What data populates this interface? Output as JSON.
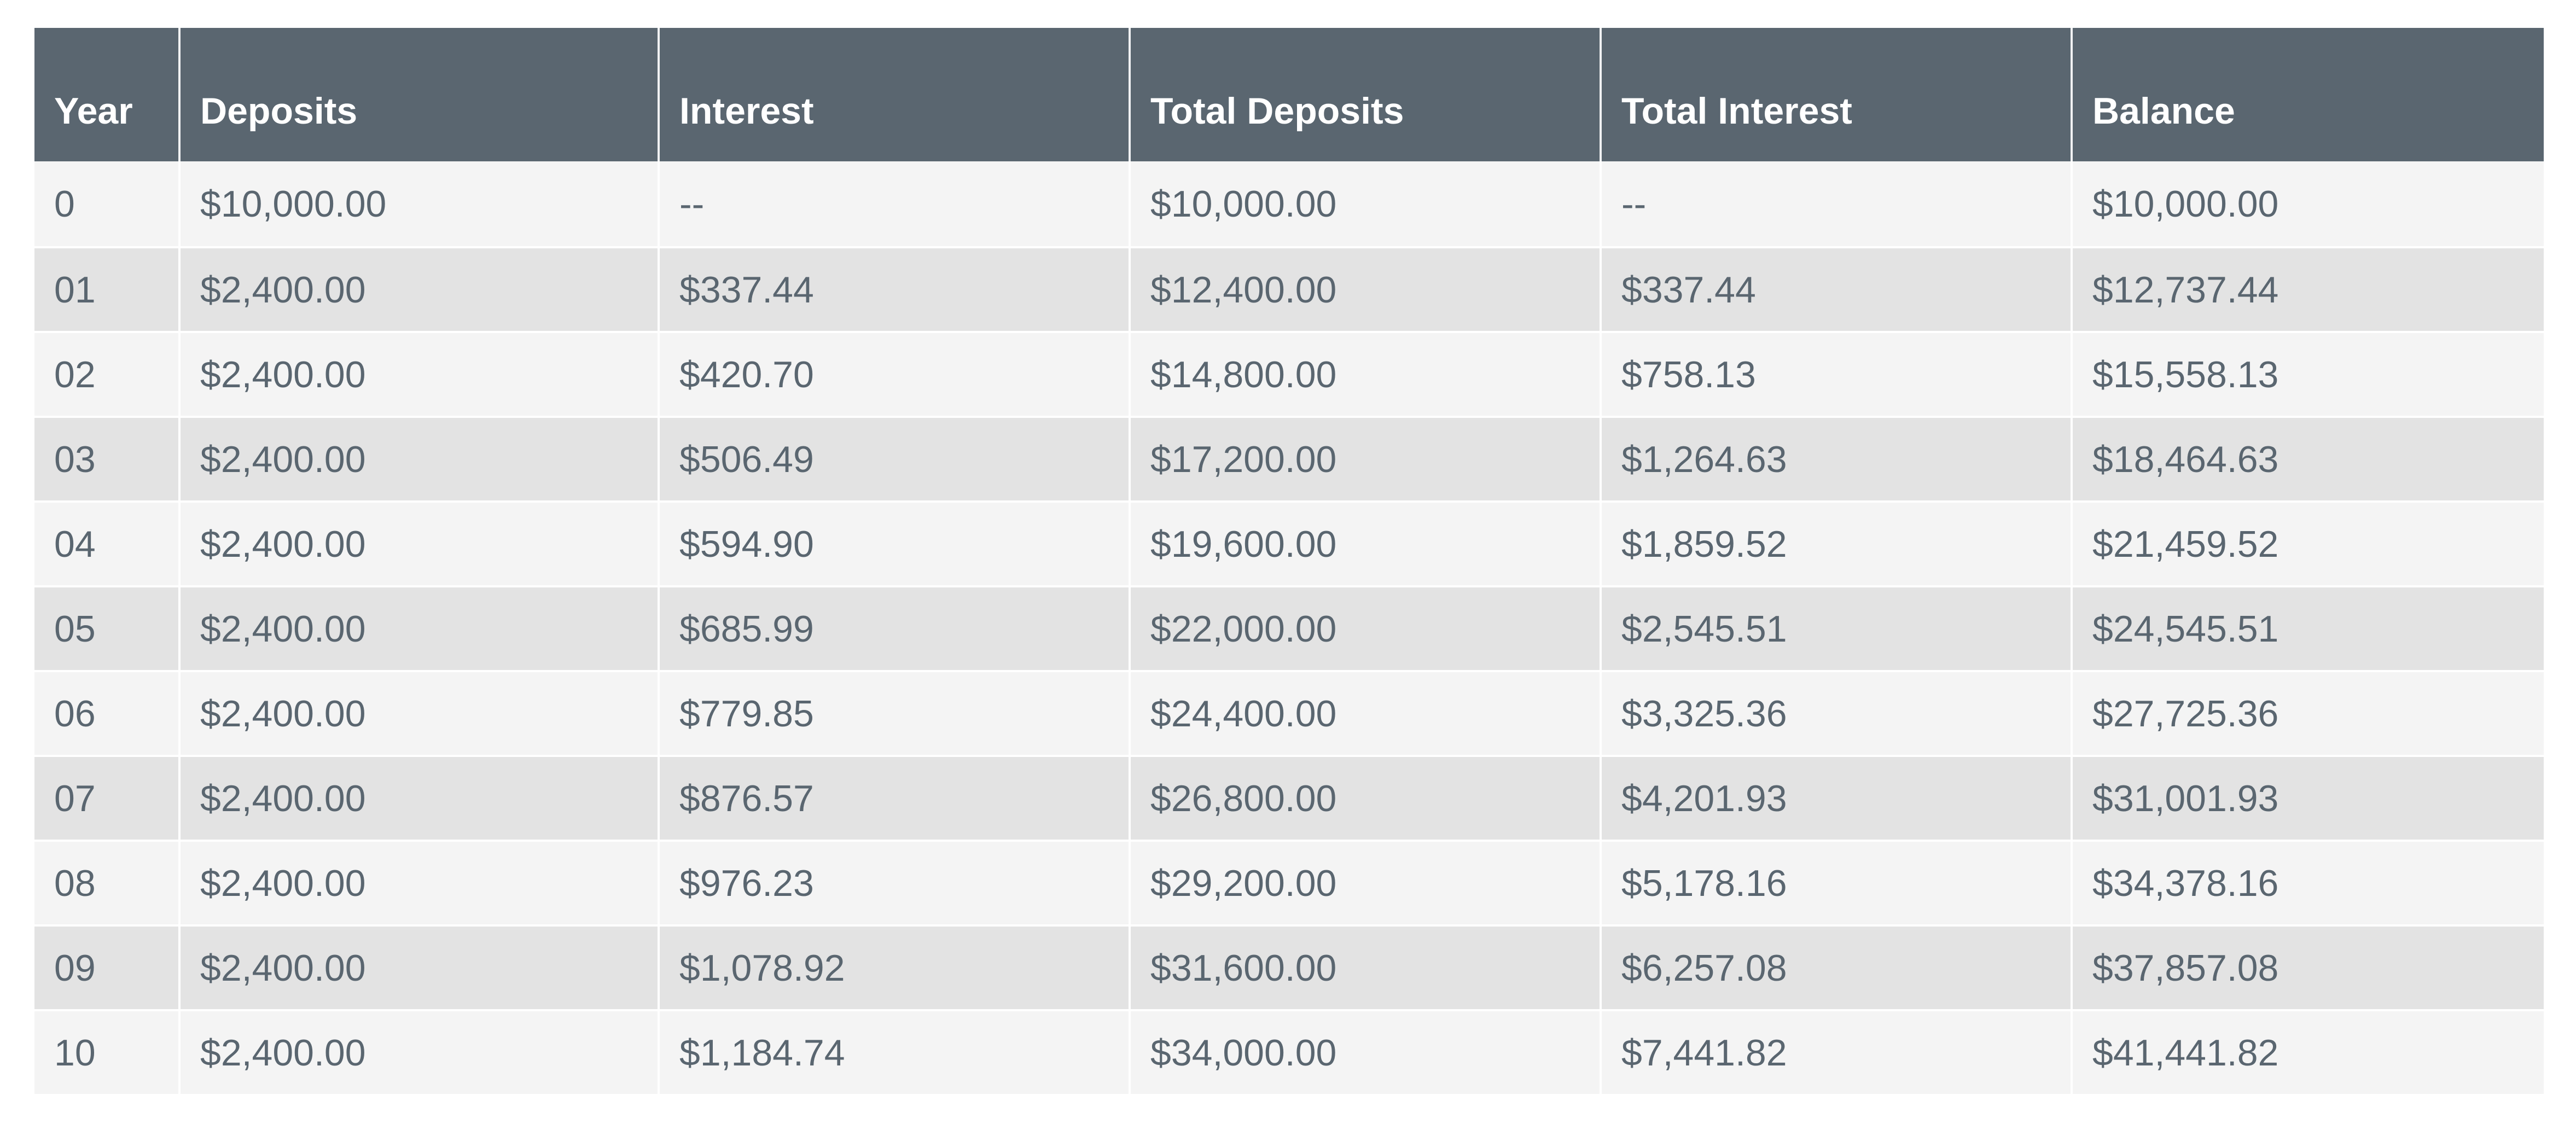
{
  "table": {
    "headers": [
      "Year",
      "Deposits",
      "Interest",
      "Total Deposits",
      "Total Interest",
      "Balance"
    ],
    "rows": [
      [
        "0",
        "$10,000.00",
        "--",
        "$10,000.00",
        "--",
        "$10,000.00"
      ],
      [
        "01",
        "$2,400.00",
        "$337.44",
        "$12,400.00",
        "$337.44",
        "$12,737.44"
      ],
      [
        "02",
        "$2,400.00",
        "$420.70",
        "$14,800.00",
        "$758.13",
        "$15,558.13"
      ],
      [
        "03",
        "$2,400.00",
        "$506.49",
        "$17,200.00",
        "$1,264.63",
        "$18,464.63"
      ],
      [
        "04",
        "$2,400.00",
        "$594.90",
        "$19,600.00",
        "$1,859.52",
        "$21,459.52"
      ],
      [
        "05",
        "$2,400.00",
        "$685.99",
        "$22,000.00",
        "$2,545.51",
        "$24,545.51"
      ],
      [
        "06",
        "$2,400.00",
        "$779.85",
        "$24,400.00",
        "$3,325.36",
        "$27,725.36"
      ],
      [
        "07",
        "$2,400.00",
        "$876.57",
        "$26,800.00",
        "$4,201.93",
        "$31,001.93"
      ],
      [
        "08",
        "$2,400.00",
        "$976.23",
        "$29,200.00",
        "$5,178.16",
        "$34,378.16"
      ],
      [
        "09",
        "$2,400.00",
        "$1,078.92",
        "$31,600.00",
        "$6,257.08",
        "$37,857.08"
      ],
      [
        "10",
        "$2,400.00",
        "$1,184.74",
        "$34,000.00",
        "$7,441.82",
        "$41,441.82"
      ]
    ]
  },
  "colors": {
    "header_bg": "#5a6670",
    "header_text": "#ffffff",
    "row_odd": "#f4f4f4",
    "row_even": "#e3e3e3",
    "body_text": "#5a6670"
  }
}
